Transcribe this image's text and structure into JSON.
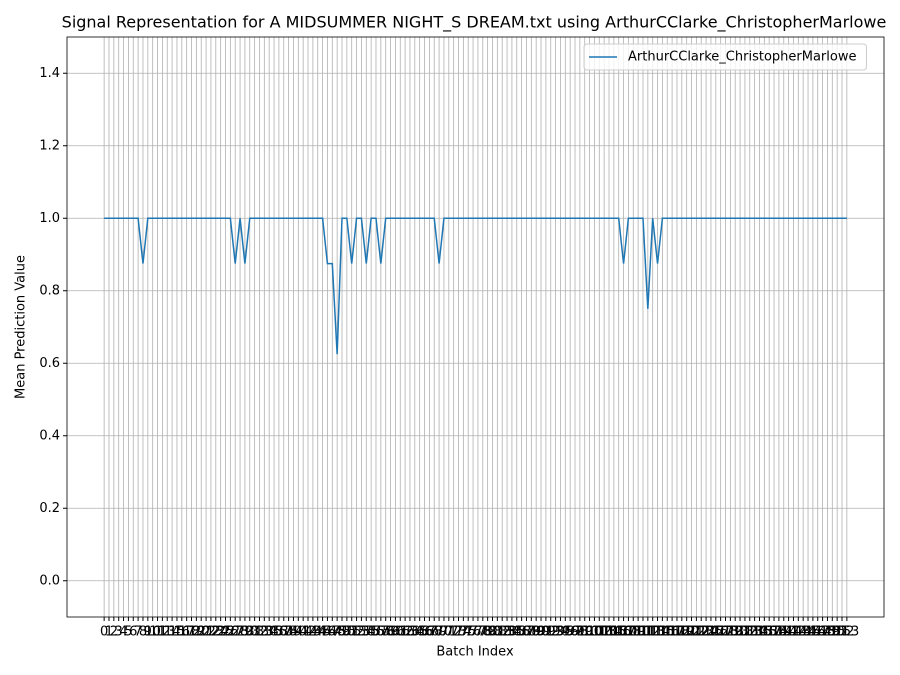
{
  "chart_data": {
    "type": "line",
    "title": "Signal Representation for A MIDSUMMER NIGHT_S DREAM.txt using ArthurCClarke_ChristopherMarlowe",
    "xlabel": "Batch Index",
    "ylabel": "Mean Prediction Value",
    "x": [
      0,
      1,
      2,
      3,
      4,
      5,
      6,
      7,
      8,
      9,
      10,
      11,
      12,
      13,
      14,
      15,
      16,
      17,
      18,
      19,
      20,
      21,
      22,
      23,
      24,
      25,
      26,
      27,
      28,
      29,
      30,
      31,
      32,
      33,
      34,
      35,
      36,
      37,
      38,
      39,
      40,
      41,
      42,
      43,
      44,
      45,
      46,
      47,
      48,
      49,
      50,
      51,
      52,
      53,
      54,
      55,
      56,
      57,
      58,
      59,
      60,
      61,
      62,
      63,
      64,
      65,
      66,
      67,
      68,
      69,
      70,
      71,
      72,
      73,
      74,
      75,
      76,
      77,
      78,
      79,
      80,
      81,
      82,
      83,
      84,
      85,
      86,
      87,
      88,
      89,
      90,
      91,
      92,
      93,
      94,
      95,
      96,
      97,
      98,
      99,
      100,
      101,
      102,
      103,
      104,
      105,
      106,
      107,
      108,
      109,
      110,
      111,
      112,
      113,
      114,
      115,
      116,
      117,
      118,
      119,
      120,
      121,
      122,
      123,
      124,
      125,
      126,
      127,
      128,
      129,
      130,
      131,
      132,
      133,
      134,
      135,
      136,
      137,
      138,
      139,
      140,
      141,
      142,
      143,
      144,
      145,
      146,
      147,
      148,
      149,
      150,
      151,
      152,
      153
    ],
    "series": [
      {
        "name": "ArthurCClarke_ChristopherMarlowe",
        "color": "#1f77b4",
        "values": [
          1,
          1,
          1,
          1,
          1,
          1,
          1,
          1,
          0.875,
          1,
          1,
          1,
          1,
          1,
          1,
          1,
          1,
          1,
          1,
          1,
          1,
          1,
          1,
          1,
          1,
          1,
          1,
          0.875,
          1,
          0.875,
          1,
          1,
          1,
          1,
          1,
          1,
          1,
          1,
          1,
          1,
          1,
          1,
          1,
          1,
          1,
          1,
          0.875,
          0.875,
          0.625,
          1,
          1,
          0.875,
          1,
          1,
          0.875,
          1,
          1,
          0.875,
          1,
          1,
          1,
          1,
          1,
          1,
          1,
          1,
          1,
          1,
          1,
          0.875,
          1,
          1,
          1,
          1,
          1,
          1,
          1,
          1,
          1,
          1,
          1,
          1,
          1,
          1,
          1,
          1,
          1,
          1,
          1,
          1,
          1,
          1,
          1,
          1,
          1,
          1,
          1,
          1,
          1,
          1,
          1,
          1,
          1,
          1,
          1,
          1,
          1,
          0.875,
          1,
          1,
          1,
          1,
          0.75,
          1,
          0.875,
          1,
          1,
          1,
          1,
          1,
          1,
          1,
          1,
          1,
          1,
          1,
          1,
          1,
          1,
          1,
          1,
          1,
          1,
          1,
          1,
          1,
          1,
          1,
          1,
          1,
          1,
          1,
          1,
          1,
          1,
          1,
          1,
          1,
          1,
          1,
          1,
          1,
          1,
          1
        ]
      }
    ],
    "xlim": [
      -7.65,
      160.65
    ],
    "ylim": [
      -0.1,
      1.5
    ],
    "yticks": [
      {
        "value": 0,
        "label": "0.0"
      },
      {
        "value": 0.2,
        "label": "0.2"
      },
      {
        "value": 0.4,
        "label": "0.4"
      },
      {
        "value": 0.6,
        "label": "0.6"
      },
      {
        "value": 0.8,
        "label": "0.8"
      },
      {
        "value": 1,
        "label": "1.0"
      },
      {
        "value": 1.2,
        "label": "1.2"
      },
      {
        "value": 1.4,
        "label": "1.4"
      }
    ],
    "grid": true,
    "legend": "upper right"
  }
}
